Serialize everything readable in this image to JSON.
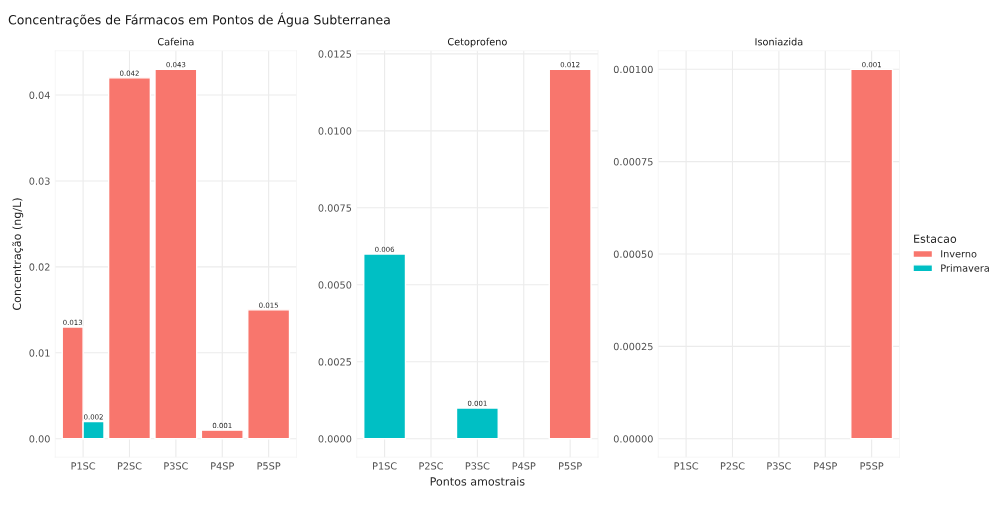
{
  "chart_data": [
    {
      "type": "bar",
      "title": "Concentrações de Fármacos em Pontos de Água Subterranea",
      "subtitle": "Cafeina",
      "ylabel": "Concentração (ng/L)",
      "categories": [
        "P1SC",
        "P2SC",
        "P3SC",
        "P4SP",
        "P5SP"
      ],
      "series": [
        {
          "color": "#f8766d",
          "values": [
            0.013,
            0.042,
            0.043,
            0.001,
            0.015
          ]
        },
        {
          "color": "#00bfc4",
          "values": [
            0.002,
            null,
            null,
            null,
            null
          ]
        }
      ],
      "ylim": [
        -0.00215,
        0.04515
      ],
      "yticks": [
        {
          "value": 0,
          "label": "0.00"
        },
        {
          "value": 0.01,
          "label": "0.01"
        },
        {
          "value": 0.02,
          "label": "0.02"
        },
        {
          "value": 0.03,
          "label": "0.03"
        },
        {
          "value": 0.04,
          "label": "0.04"
        }
      ],
      "data_labels": true,
      "grid": true
    },
    {
      "type": "bar",
      "subtitle": "Cetoprofeno",
      "xlabel": "Pontos amostrais",
      "categories": [
        "P1SC",
        "P2SC",
        "P3SC",
        "P4SP",
        "P5SP"
      ],
      "series": [
        {
          "color": "#f8766d",
          "values": [
            null,
            null,
            null,
            null,
            0.012
          ]
        },
        {
          "color": "#00bfc4",
          "values": [
            0.006,
            null,
            0.001,
            null,
            null
          ]
        }
      ],
      "ylim": [
        -0.0006,
        0.0126
      ],
      "yticks": [
        {
          "value": 0,
          "label": "0.0000"
        },
        {
          "value": 0.0025,
          "label": "0.0025"
        },
        {
          "value": 0.005,
          "label": "0.0050"
        },
        {
          "value": 0.0075,
          "label": "0.0075"
        },
        {
          "value": 0.01,
          "label": "0.0100"
        },
        {
          "value": 0.0125,
          "label": "0.0125"
        }
      ],
      "data_labels": true,
      "grid": true
    },
    {
      "type": "bar",
      "subtitle": "Isoniazida",
      "legend_title": "Estacao",
      "categories": [
        "P1SC",
        "P2SC",
        "P3SC",
        "P4SP",
        "P5SP"
      ],
      "series": [
        {
          "name": "Inverno",
          "color": "#f8766d",
          "values": [
            null,
            null,
            null,
            null,
            0.001
          ]
        },
        {
          "name": "Primavera",
          "color": "#00bfc4",
          "values": [
            null,
            null,
            null,
            null,
            null
          ]
        }
      ],
      "ylim": [
        -5e-05,
        0.00105
      ],
      "yticks": [
        {
          "value": 0,
          "label": "0.00000"
        },
        {
          "value": 0.00025,
          "label": "0.00025"
        },
        {
          "value": 0.0005,
          "label": "0.00050"
        },
        {
          "value": 0.00075,
          "label": "0.00075"
        },
        {
          "value": 0.001,
          "label": "0.00100"
        }
      ],
      "data_labels": true,
      "grid": true,
      "legend": "right"
    }
  ]
}
